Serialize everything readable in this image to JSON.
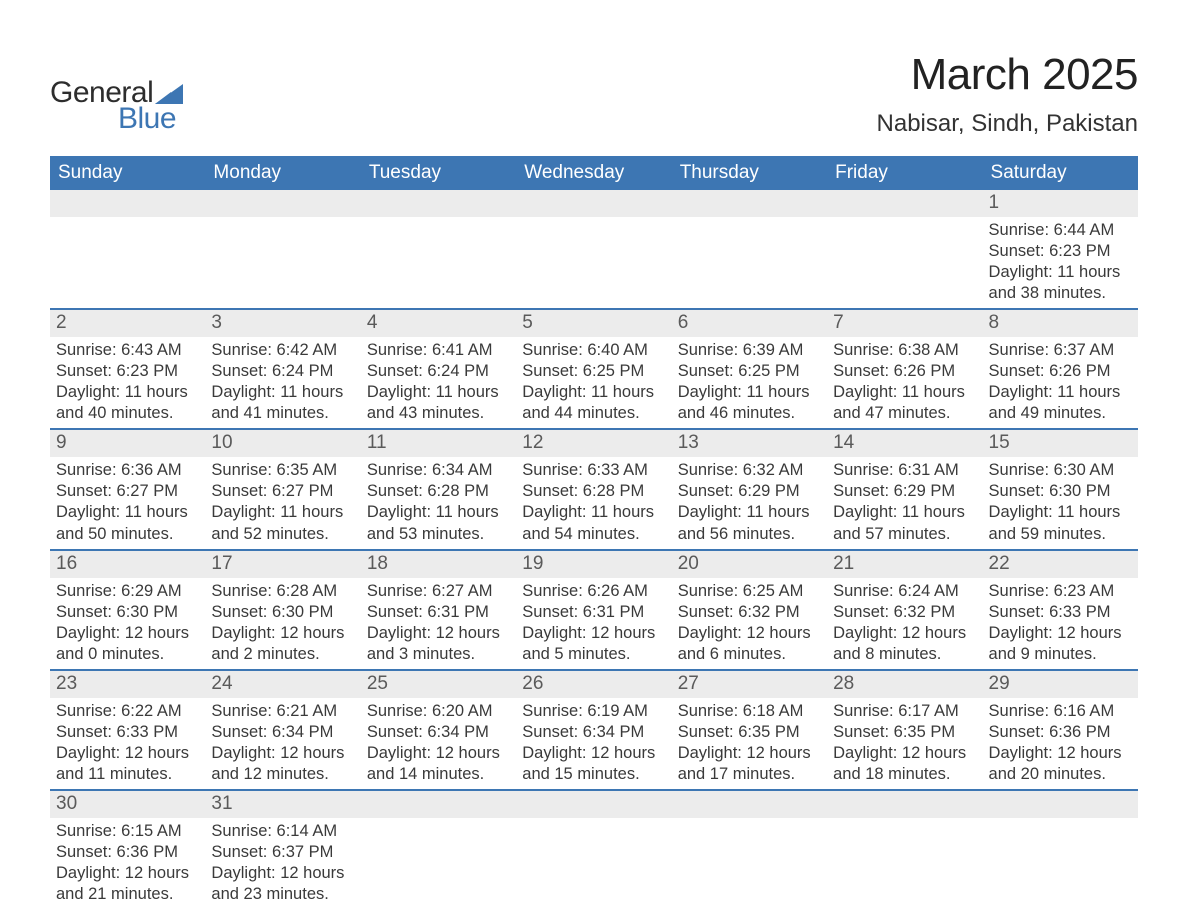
{
  "brand": {
    "name_top": "General",
    "name_bottom": "Blue",
    "wedge_color": "#3d76b3",
    "top_color": "#2d2d2d",
    "bottom_color": "#3d76b3"
  },
  "title": {
    "month_year": "March 2025",
    "location": "Nabisar, Sindh, Pakistan",
    "title_fontsize": 44,
    "location_fontsize": 24
  },
  "colors": {
    "header_bg": "#3d76b3",
    "header_text": "#ffffff",
    "daynum_bg": "#ececec",
    "daynum_text": "#5a5a5a",
    "body_text": "#3a3a3a",
    "row_border": "#3d76b3",
    "page_bg": "#ffffff"
  },
  "weekdays": [
    "Sunday",
    "Monday",
    "Tuesday",
    "Wednesday",
    "Thursday",
    "Friday",
    "Saturday"
  ],
  "weeks": [
    [
      {
        "blank": true
      },
      {
        "blank": true
      },
      {
        "blank": true
      },
      {
        "blank": true
      },
      {
        "blank": true
      },
      {
        "blank": true
      },
      {
        "day": "1",
        "sunrise": "Sunrise: 6:44 AM",
        "sunset": "Sunset: 6:23 PM",
        "daylight1": "Daylight: 11 hours",
        "daylight2": "and 38 minutes."
      }
    ],
    [
      {
        "day": "2",
        "sunrise": "Sunrise: 6:43 AM",
        "sunset": "Sunset: 6:23 PM",
        "daylight1": "Daylight: 11 hours",
        "daylight2": "and 40 minutes."
      },
      {
        "day": "3",
        "sunrise": "Sunrise: 6:42 AM",
        "sunset": "Sunset: 6:24 PM",
        "daylight1": "Daylight: 11 hours",
        "daylight2": "and 41 minutes."
      },
      {
        "day": "4",
        "sunrise": "Sunrise: 6:41 AM",
        "sunset": "Sunset: 6:24 PM",
        "daylight1": "Daylight: 11 hours",
        "daylight2": "and 43 minutes."
      },
      {
        "day": "5",
        "sunrise": "Sunrise: 6:40 AM",
        "sunset": "Sunset: 6:25 PM",
        "daylight1": "Daylight: 11 hours",
        "daylight2": "and 44 minutes."
      },
      {
        "day": "6",
        "sunrise": "Sunrise: 6:39 AM",
        "sunset": "Sunset: 6:25 PM",
        "daylight1": "Daylight: 11 hours",
        "daylight2": "and 46 minutes."
      },
      {
        "day": "7",
        "sunrise": "Sunrise: 6:38 AM",
        "sunset": "Sunset: 6:26 PM",
        "daylight1": "Daylight: 11 hours",
        "daylight2": "and 47 minutes."
      },
      {
        "day": "8",
        "sunrise": "Sunrise: 6:37 AM",
        "sunset": "Sunset: 6:26 PM",
        "daylight1": "Daylight: 11 hours",
        "daylight2": "and 49 minutes."
      }
    ],
    [
      {
        "day": "9",
        "sunrise": "Sunrise: 6:36 AM",
        "sunset": "Sunset: 6:27 PM",
        "daylight1": "Daylight: 11 hours",
        "daylight2": "and 50 minutes."
      },
      {
        "day": "10",
        "sunrise": "Sunrise: 6:35 AM",
        "sunset": "Sunset: 6:27 PM",
        "daylight1": "Daylight: 11 hours",
        "daylight2": "and 52 minutes."
      },
      {
        "day": "11",
        "sunrise": "Sunrise: 6:34 AM",
        "sunset": "Sunset: 6:28 PM",
        "daylight1": "Daylight: 11 hours",
        "daylight2": "and 53 minutes."
      },
      {
        "day": "12",
        "sunrise": "Sunrise: 6:33 AM",
        "sunset": "Sunset: 6:28 PM",
        "daylight1": "Daylight: 11 hours",
        "daylight2": "and 54 minutes."
      },
      {
        "day": "13",
        "sunrise": "Sunrise: 6:32 AM",
        "sunset": "Sunset: 6:29 PM",
        "daylight1": "Daylight: 11 hours",
        "daylight2": "and 56 minutes."
      },
      {
        "day": "14",
        "sunrise": "Sunrise: 6:31 AM",
        "sunset": "Sunset: 6:29 PM",
        "daylight1": "Daylight: 11 hours",
        "daylight2": "and 57 minutes."
      },
      {
        "day": "15",
        "sunrise": "Sunrise: 6:30 AM",
        "sunset": "Sunset: 6:30 PM",
        "daylight1": "Daylight: 11 hours",
        "daylight2": "and 59 minutes."
      }
    ],
    [
      {
        "day": "16",
        "sunrise": "Sunrise: 6:29 AM",
        "sunset": "Sunset: 6:30 PM",
        "daylight1": "Daylight: 12 hours",
        "daylight2": "and 0 minutes."
      },
      {
        "day": "17",
        "sunrise": "Sunrise: 6:28 AM",
        "sunset": "Sunset: 6:30 PM",
        "daylight1": "Daylight: 12 hours",
        "daylight2": "and 2 minutes."
      },
      {
        "day": "18",
        "sunrise": "Sunrise: 6:27 AM",
        "sunset": "Sunset: 6:31 PM",
        "daylight1": "Daylight: 12 hours",
        "daylight2": "and 3 minutes."
      },
      {
        "day": "19",
        "sunrise": "Sunrise: 6:26 AM",
        "sunset": "Sunset: 6:31 PM",
        "daylight1": "Daylight: 12 hours",
        "daylight2": "and 5 minutes."
      },
      {
        "day": "20",
        "sunrise": "Sunrise: 6:25 AM",
        "sunset": "Sunset: 6:32 PM",
        "daylight1": "Daylight: 12 hours",
        "daylight2": "and 6 minutes."
      },
      {
        "day": "21",
        "sunrise": "Sunrise: 6:24 AM",
        "sunset": "Sunset: 6:32 PM",
        "daylight1": "Daylight: 12 hours",
        "daylight2": "and 8 minutes."
      },
      {
        "day": "22",
        "sunrise": "Sunrise: 6:23 AM",
        "sunset": "Sunset: 6:33 PM",
        "daylight1": "Daylight: 12 hours",
        "daylight2": "and 9 minutes."
      }
    ],
    [
      {
        "day": "23",
        "sunrise": "Sunrise: 6:22 AM",
        "sunset": "Sunset: 6:33 PM",
        "daylight1": "Daylight: 12 hours",
        "daylight2": "and 11 minutes."
      },
      {
        "day": "24",
        "sunrise": "Sunrise: 6:21 AM",
        "sunset": "Sunset: 6:34 PM",
        "daylight1": "Daylight: 12 hours",
        "daylight2": "and 12 minutes."
      },
      {
        "day": "25",
        "sunrise": "Sunrise: 6:20 AM",
        "sunset": "Sunset: 6:34 PM",
        "daylight1": "Daylight: 12 hours",
        "daylight2": "and 14 minutes."
      },
      {
        "day": "26",
        "sunrise": "Sunrise: 6:19 AM",
        "sunset": "Sunset: 6:34 PM",
        "daylight1": "Daylight: 12 hours",
        "daylight2": "and 15 minutes."
      },
      {
        "day": "27",
        "sunrise": "Sunrise: 6:18 AM",
        "sunset": "Sunset: 6:35 PM",
        "daylight1": "Daylight: 12 hours",
        "daylight2": "and 17 minutes."
      },
      {
        "day": "28",
        "sunrise": "Sunrise: 6:17 AM",
        "sunset": "Sunset: 6:35 PM",
        "daylight1": "Daylight: 12 hours",
        "daylight2": "and 18 minutes."
      },
      {
        "day": "29",
        "sunrise": "Sunrise: 6:16 AM",
        "sunset": "Sunset: 6:36 PM",
        "daylight1": "Daylight: 12 hours",
        "daylight2": "and 20 minutes."
      }
    ],
    [
      {
        "day": "30",
        "sunrise": "Sunrise: 6:15 AM",
        "sunset": "Sunset: 6:36 PM",
        "daylight1": "Daylight: 12 hours",
        "daylight2": "and 21 minutes."
      },
      {
        "day": "31",
        "sunrise": "Sunrise: 6:14 AM",
        "sunset": "Sunset: 6:37 PM",
        "daylight1": "Daylight: 12 hours",
        "daylight2": "and 23 minutes."
      },
      {
        "blank": true
      },
      {
        "blank": true
      },
      {
        "blank": true
      },
      {
        "blank": true
      },
      {
        "blank": true
      }
    ]
  ]
}
